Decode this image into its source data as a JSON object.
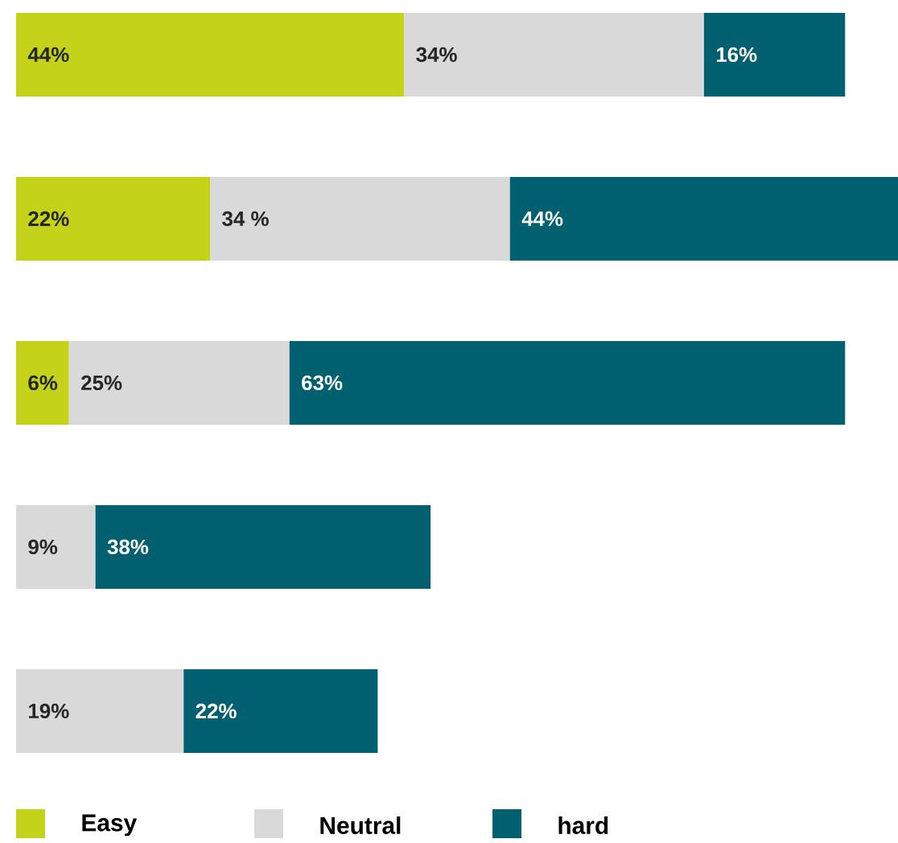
{
  "chart_data": {
    "type": "bar",
    "orientation": "horizontal",
    "stacked": true,
    "categories": [
      null,
      null,
      null,
      null,
      null
    ],
    "legend": "bottom",
    "series": [
      {
        "name": "Easy",
        "color": "#c5d21a",
        "values": [
          44,
          22,
          6,
          null,
          null
        ],
        "value_labels": [
          "44%",
          "22%",
          "6%",
          null,
          null
        ]
      },
      {
        "name": "Neutral",
        "color": "#d9d9d9",
        "values": [
          34,
          34,
          25,
          9,
          19
        ],
        "value_labels": [
          "34%",
          "34 %",
          "25%",
          "9%",
          "19%"
        ]
      },
      {
        "name": "hard",
        "color": "#006070",
        "values": [
          16,
          44,
          63,
          38,
          22
        ],
        "value_labels": [
          "16%",
          "44%",
          "63%",
          "38%",
          "22%"
        ]
      }
    ]
  }
}
